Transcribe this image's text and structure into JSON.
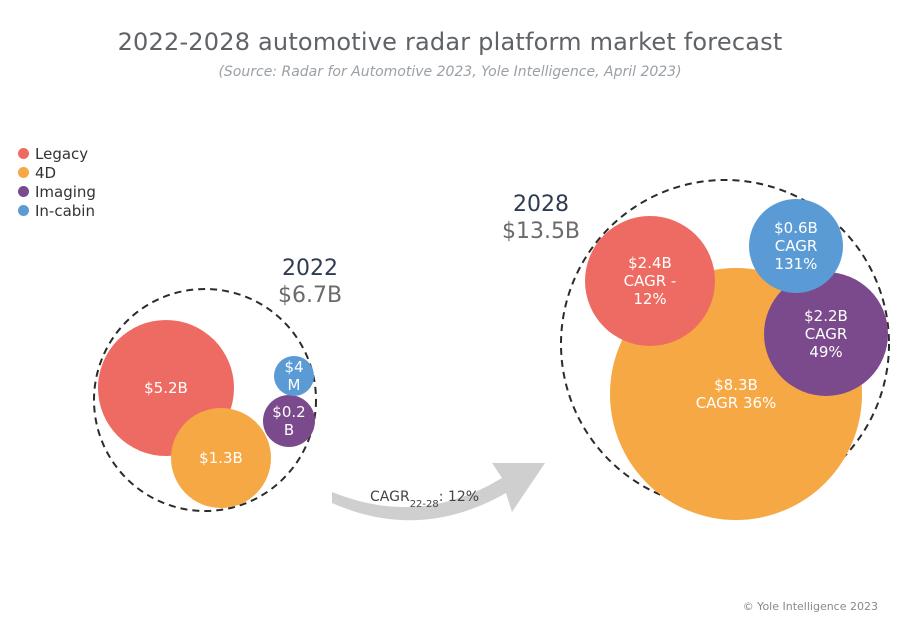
{
  "title": "2022-2028 automotive radar platform market forecast",
  "subtitle": "(Source: Radar for Automotive 2023, Yole Intelligence, April 2023)",
  "copyright": "© Yole Intelligence 2023",
  "legend": [
    {
      "name": "Legacy",
      "color": "#ee6b63"
    },
    {
      "name": "4D",
      "color": "#f6a844"
    },
    {
      "name": "Imaging",
      "color": "#7b4a8c"
    },
    {
      "name": "In-cabin",
      "color": "#5b9bd5"
    }
  ],
  "growth": {
    "label": "CAGR",
    "sub": "22-28",
    "value": ": 12%"
  },
  "chart_data": {
    "type": "bubble",
    "title": "2022-2028 automotive radar platform market forecast",
    "groups": [
      {
        "year": "2022",
        "total_label": "$6.7B",
        "total_value_busd": 6.7,
        "items": [
          {
            "segment": "Legacy",
            "value_busd": 5.2,
            "label_lines": [
              "$5.2B"
            ]
          },
          {
            "segment": "4D",
            "value_busd": 1.3,
            "label_lines": [
              "$1.3B"
            ]
          },
          {
            "segment": "Imaging",
            "value_busd": 0.2,
            "label_lines": [
              "$0.2",
              "B"
            ]
          },
          {
            "segment": "In-cabin",
            "value_busd": 0.004,
            "label_lines": [
              "$4",
              "M"
            ]
          }
        ]
      },
      {
        "year": "2028",
        "total_label": "$13.5B",
        "total_value_busd": 13.5,
        "items": [
          {
            "segment": "4D",
            "value_busd": 8.3,
            "cagr": "36%",
            "label_lines": [
              "$8.3B",
              "CAGR 36%"
            ]
          },
          {
            "segment": "Legacy",
            "value_busd": 2.4,
            "cagr": "-12%",
            "label_lines": [
              "$2.4B",
              "CAGR -",
              "12%"
            ]
          },
          {
            "segment": "Imaging",
            "value_busd": 2.2,
            "cagr": "49%",
            "label_lines": [
              "$2.2B",
              "CAGR",
              "49%"
            ]
          },
          {
            "segment": "In-cabin",
            "value_busd": 0.6,
            "cagr": "131%",
            "label_lines": [
              "$0.6B",
              "CAGR",
              "131%"
            ]
          }
        ]
      }
    ],
    "overall_cagr": "12%"
  }
}
